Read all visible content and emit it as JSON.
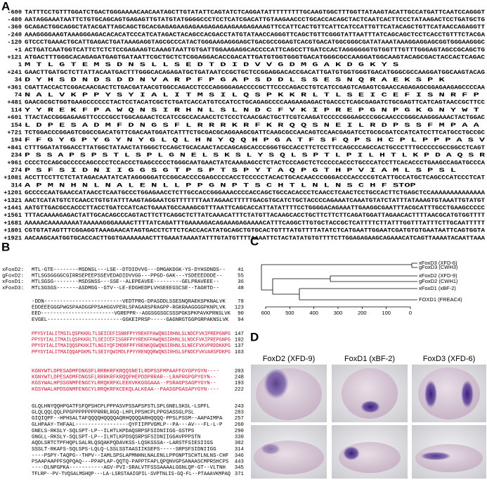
{
  "panel_a": {
    "label": "A",
    "rows": [
      {
        "num": "-600",
        "seq": "TATTTCCTGTTTGGATCTGACTGGGAAAACAACAATAGCTTGTATATTCAGTATCTCAGGATATTTTTTTTTGCAAGTGGCTTTGGTTATAAGTACATTGCCATGATTCAATCCAGGGT"
      },
      {
        "num": "-480",
        "seq": "AATAGGAAATAATTCTGTGCAGCAGTGAGAGTTGTATGTATGGGGCCCTCCTCATCGACATTGTAAGAACCCTGCACCACAGCTACTCAATCACTTCCCTATAAGACTCCTGATGCTG"
      },
      {
        "num": "-360",
        "seq": "GCAGACTGGCAGGCTATACGATTAGCAGCTGCACGAGAGAAGAGAAGAGAGAAGAAGAGAAAGTTCCATTCACTGTTCATTCATCCATTGTTCATACAGCTGTTCATAACCAGAGGTT"
      },
      {
        "num": "-240",
        "seq": "AAAGGGGAAGTAAAGGGAGACACACATCCCATCATAGACTACAGCCACGACCTATGTATAACCAGGGTTCAGCTGTTCGGGTATTAATTTATCAGCAGCTCCTCACCTGTTTCTACGA"
      },
      {
        "num": "-120",
        "seq": "GTCCCTGAAACTGCATTGAGACTGATAAAGAGGTAGCGCCCATACTGGGAAGAGGGAGCTGACGCCGGAGTCACGTGACATGGCGGGCGATATAAATAAAGGAGGAGCGGTGGGAAGGGC"
      },
      {
        "num": "+1",
        "seq": "ACTGATCAATGGTCATTCTCTCTCCGAGAAGTCAAAGTAATTGTGATTGGAAGAGGCACCCCATTCAGCCTTGATCCACTAGGGGGGTGTGGTTTGTTTGGGAGTAGCCGCAGCTG"
      },
      {
        "num": "+121",
        "seq": "ATGACTTTGGGCACAGAGATGAGTGATAATTCGCTGCTCTCGGAGGACACCGACATTGATGTGGTGGGTGACATGGGCGCCAAGGATGGCAAGTACAGCGACTACCACTCAGAC"
      },
      {
        "num": "1",
        "seq": "M T L G T E M S D N S L L S E D T D I D V V G D M G A K D G K Y S"
      },
      {
        "num": "+241",
        "seq": "GAACTTGATGCTCTTATTACAATGACTTTGGGCACAGAGATGCTGATAATCCGCTGCTCCGGAGGACACCGACATTGATGTGGTGGGTGACATGGGCGCCAAGGATGGCAAGTACAG"
      },
      {
        "num": "34",
        "seq": "D Y H S D N D S D D N V A R P F P G A P S D D L S S E S N Q R A E K S P K"
      },
      {
        "num": "+361",
        "seq": "CGATTACCACTCGGACAACGACTCTGACGATAACGTGGCCAGACCTCCCAGGGGAGACCCCGCTTCCCCAGACCTGTCATCCGAGTCAGAGTCGAACCAGAGAGCGGAGAAGAGCCCCAA"
      },
      {
        "num": "74",
        "seq": "N A L V K P P Y S Y I A L I T M S I L Q S P K K R L T L S E I C E F I S N R F P"
      },
      {
        "num": "+481",
        "seq": "GAACGCGCTGGTGAAGCCCCCCTACTCCTACATCGCTCTGATCACCATGTCCATCCTGCAGAGCCCCAAGAAGAGACTGACCCTCAGCGAGATCTGCGAGTTCATCAGTAACCGCTTCC"
      },
      {
        "num": "114",
        "seq": "Y Y R E K F P A W Q N S I R H N L S L N D C F V K I P R E P G N P G K G N Y W T"
      },
      {
        "num": "+601",
        "seq": "TTACTACCGGGAGAAGTTCCCCGCCTGGCAGAACTCCATCCGCCACAACCTCTCCCTCAACGACTGCTTCGTCAAGATCCCCCGGGAGCCCGGCAACCCGGGCAAGGGAAACTACTGGAC"
      },
      {
        "num": "154",
        "seq": "L D P E S A D M F D N G S F L R R R K R F K R Q Q S N E I L R D P S S F M P A A"
      },
      {
        "num": "+721",
        "seq": "TCTGGACCCGGAGTCGGCCGACATGTTCGACAATGGATCATTTCTGCGACGCAGGAAGCGATTCAAGCGCCAACAGTCCAACGAGATCCTGCGCGATCCATCATCCTTCATGCCTGCCGC"
      },
      {
        "num": "194",
        "seq": "F F G Y G P Y G Y N Y G L Q L H N Y Q Q H P G A T F S F Q P S H C P L P P P A S V"
      },
      {
        "num": "+841",
        "seq": "CTTTGGATATGGACCTTATGGCTATAACTATGGGCTCCAGCTGCACAACTACCAGCAGCACCCGGGTGCCACCTTCTCCTTCCAGCCCAGCCACTGCCCTTTGCCCCCGCCGGCCTCAGT"
      },
      {
        "num": "234",
        "seq": "P S S A P S P S T L S P L G N E L S K S L Y S Q L S P T L P I L H T L K P D A Q S R"
      },
      {
        "num": "+961",
        "seq": "CCCCTCCAGCGCCCCCAGCCCCTCCACCCTGAGCCCCCTGGGCAATGAACTATCAAAGAGCCTCTACTCCCAGCTCTCCCCCACCCTGCCCATCCTTCACACCCTGAAGCCAGATGCCCA"
      },
      {
        "num": "274",
        "seq": "P S F S I D N I I G G S G T P S P T S P Y T A Q P G T H P V I A M L S P S L"
      },
      {
        "num": "+1081",
        "seq": "ACCTTCCTTCTCTATAGACAATATCATAGGGGGATCCGGCACCCCGAGCCCCACCTCCCCCTACACTGCACAACCCGGGACCCACCCCGTCATTGCCATGCTCAGCCCATCCCTCAT"
      },
      {
        "num": "314",
        "seq": "A P M N H N L N A L E N L L P P G N P T S C H T L N L N S C H F STOP"
      },
      {
        "num": "+1201",
        "seq": "GCCCCCAATGAACCATAACCTCAATGCCCTGGAGAACCTCTTGCCACCGGGAAACCCCACCAGCTGCCACACCCTCAACCTCAACTCCTGCCACTTCTGAGCTCCAAAAAAAAAAAAAA"
      },
      {
        "num": "+1321",
        "seq": "AACTCATATGTCTCAACCTGTGTATTTAAGTAGGAATCGTTTTTTTAATAGAACTTTTTGACGTGCATCTGCTACCCCAGAAATCAAATGTATCTATTTATAAAGTGTAAATTGTATGT"
      },
      {
        "num": "+1441",
        "seq": "AATGTTGACGCCACCCTTACCTGATCCATCACTGAAATGCCAAAGCGTTTAATTCAGCACCATTATATTTTCCTGGGGACAGAAATTGAAGGCGAATTTACGCATTTGCCTGAAGCCCCC"
      },
      {
        "num": "+1561",
        "seq": "TTTACAAAAGAGACTATTGCACAGCCCAGTACTTCTTCAGGCTCTTATCAAACATTTCTATGTTACAAGCACCTGCTTCTTCTTCAGATGGATTAGAACACTTTTAACGCATGTGGTTTT"
      },
      {
        "num": "+1681",
        "seq": "AAAAACAAAAAAAATAAAAAGGGAAAACTTTTATCAGATTTGAAAAGACAGAAAGAGAAAACATTTCAGGCTTGTGCTACCGCTCATTTTCTTATTTGGTTTATTTCTTGCAATTTTT"
      },
      {
        "num": "+1801",
        "seq": "CGTGTATAGTTTCGGAGGTAAAGAACATAGTGACCTCTTCTCACCACATATGCAGCTGTGCACTGTTTATGTTTTATATCTCATGAATTGGAATCGATGTGTGAATAATTCAGTGGTA"
      },
      {
        "num": "+1921",
        "seq": "AACAAGCAATGGTGCACCACTTGGTGAAAAAAACTTTGAAATAAAATATTTGTATGTTTTAAAATTCTACTATATGTGTTTTCTTGGAGAGAAGCAGAAACATCAGTTAAAATACAATTAAA"
      }
    ]
  },
  "panel_b": {
    "label": "B",
    "names": [
      "xFoxD2:",
      "gFoxD2:",
      "xFoxD1:",
      "xFoxD3:"
    ],
    "blocks": [
      {
        "rows": [
          {
            "seq": "MTL-GTE--------MSDNSL---LSE--DTDIDVVG---DMGAKDGK-YS-DYHSDNDS--",
            "num": "41"
          },
          {
            "seq": "MTLSGSGGGGCGIRRSEPEEPSSEVEDADIDVVGG---PPGD-GAK---YSDEEEDDDE--",
            "num": "55"
          },
          {
            "seq": "MTLSGSG--------MSDSNSS---SSE--ALEPEAVEE---------GELPRAVEEE--",
            "num": "36"
          },
          {
            "seq": "MTLSGSGS-------ASDMGG--GTV--LE-EDGHEDPLVHSEEEGSCSE--TAGRTD--",
            "num": "48"
          }
        ]
      },
      {
        "rows": [
          {
            "seq": "-DDN-------------------------VEDTPRG-DPASDDLSSESNQRAEKSPKNALVK",
            "num": "78"
          },
          {
            "seq": "EDDEEEGGGPWGSPAADGGPPSAHGGVPERLSPAGARSPRAGPP-RGKRAAGGGGPKNPLVK",
            "num": "123"
          },
          {
            "seq": "EED------------------------VGREPPR--AGGSGGSGCSSSPGKSPKPAVKPRNSLVK",
            "num": "90"
          },
          {
            "seq": "EVGEL------------------------GGKEIPRSP-----GAGNRGTGGPGRPAKNSLVK",
            "num": "94"
          }
        ]
      },
      {
        "color": "#c8102e",
        "rows": [
          {
            "seq": "PPYSYIALITMSILQSPKKRLTLSEICEFISNRFPYYREKFPAWQNSIRHNLSLNDCFVKIPREPGNPG",
            "num": "147"
          },
          {
            "seq": "PPYSYIALITMAILQSPKKRLTLSEICEFISGRFPYYREKFPAWQNSIRHNLSLNDCFVKIPREPGNPG",
            "num": "192"
          },
          {
            "seq": "PPYSYIALITMAIQQSPKKKITLNGIYQFIMDRFPFYRENKQGWQNSIRHNLSLNECFVKVPRDDKKPG",
            "num": "137"
          },
          {
            "seq": "PPYSYIALITMAIQQAPGKMLTLSEIYQWIMDLFPYYRENQQRWQNSIRHSLSFNDCFVKVARSPDKPG",
            "num": "163"
          }
        ]
      },
      {
        "color": "#c8102e",
        "rows": [
          {
            "seq": "KGNYWTLDPESADMFDNGSFLRRRKRFKRQQSNEILRDPSSFMPAAFFGYGPYGYN----",
            "num": "203"
          },
          {
            "seq": "KGNYWTLDPESADMFDNGSFLRRRKRFKRQQPHEPDDPRRAR--LRAPRGPGPYGYN--",
            "num": "248"
          },
          {
            "seq": "KGSYWALHPSSGNMFENGCYLRRQKRFKLEEKVKKGGGAAA--PSRAGPSAGPYGYN--",
            "num": "193"
          },
          {
            "seq": "KGSYWALHPDSGNMFENGCYLRRQKRFKCEKQLALKEAA--PAASGPGASAPYGYN----",
            "num": "222"
          }
        ]
      },
      {
        "rows": [
          {
            "seq": "GLQLHNYQQHPGATFSFQPSHCPLPPPASVPSSAPSPSTLSPLGNELSKSL-LSPFL",
            "num": "243"
          },
          {
            "seq": "GLQLQQLQQLPPGPPPPPPPPRRRLRGQ-LHPLPPSHCPLPPGSASSGLPSL",
            "num": "283"
          },
          {
            "seq": "GIQIQPF--HPHSALTAFQQQQHQQQQAQRHQQQQARHQQQQ-PPSLPSSM--AAPAIMPA",
            "num": "257"
          },
          {
            "seq": "GLHPAAY-THFAAL-----------------QYFIIPPVGMLP--PA---AV---FL-L-P",
            "num": "260"
          }
        ]
      },
      {
        "rows": [
          {
            "seq": "GNELS-RKSLY-SQLSPT-LP--ILHTLKPDAQSRPSFSIDNIIGG-GSTPS",
            "num": "290"
          },
          {
            "seq": "GNGLL-RKSLY-SQLSPT-LP--ILHTLKPDSQSRPSFSIDNIIGGAVPPPSTN",
            "num": "330"
          },
          {
            "seq": "AQDLSRTCTPFHQPLSALRLQSQAKPQDAVKSS-LQSKSSSA--LARSTFSIESIIGS",
            "num": "302"
          },
          {
            "seq": "SSSLT-RKAFS-SQLSPS-LQLQ-LSSLSSTAASIIKSEPS-----SRPSFSIDNIIGG",
            "num": "314"
          }
        ]
      },
      {
        "rows": [
          {
            "seq": "----PSPY-TAQPG--THPV--IAMLSPSLAPMNHNLNALENLLPPGNPTSCHTLNLNS-CHF",
            "num": "346"
          },
          {
            "seq": "PSAAPAAPPFSQPQAQ---PPAPLAP-QQTQ-PAPPTFAPLQPQNVGPSANAASCMPRSHCPS",
            "num": "443"
          },
          {
            "seq": "----DLNPGPKA-----------AGV-PVI-SRALVTFSSSAAAALGGNLQP-GT--VLTNH",
            "num": "345"
          },
          {
            "seq": "TFLRP--PV-TVQSALMSHQP---LA-LSRSTAAIGPIL-SVPTNLIS-GQ-FL--PTAAAVKMPAQ",
            "num": "371"
          }
        ]
      }
    ]
  },
  "panel_c": {
    "label": "C",
    "leaves": [
      "xFoxD3 (XFD-6)",
      "gFoxD3 (CWH3)",
      "xFoxD2 (XFD-9)",
      "gFoxD2 (CWH1)",
      "xFoxD1 (xBF-2)",
      "FOXD1 (FREAC4)"
    ],
    "xlim": [
      600,
      0
    ],
    "xticks": [
      600,
      500,
      400,
      300,
      200,
      100,
      0
    ]
  },
  "panel_d": {
    "label": "D",
    "columns": [
      "FoxD2 (XFD-9)",
      "FoxD1 (xBF-2)",
      "FoxD3 (XFD-6)"
    ]
  }
}
